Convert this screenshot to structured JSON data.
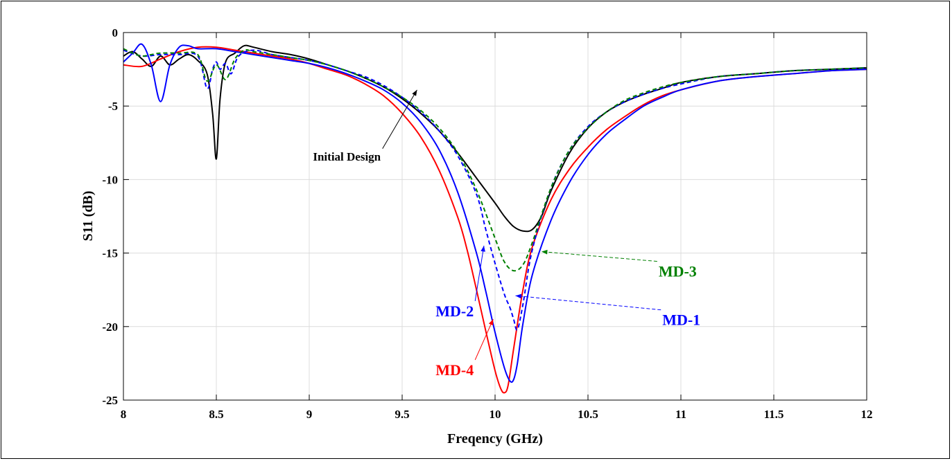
{
  "chart_data": {
    "type": "line",
    "title": "",
    "xlabel": "Freqency (GHz)",
    "ylabel": "S11 (dB)",
    "xlim": [
      8,
      12
    ],
    "ylim": [
      -25,
      0
    ],
    "xticks": [
      "8",
      "8.5",
      "9",
      "9.5",
      "10",
      "10.5",
      "11",
      "11.5",
      "12"
    ],
    "yticks": [
      "0",
      "-5",
      "-10",
      "-15",
      "-20",
      "-25"
    ],
    "grid": true,
    "series": [
      {
        "name": "Initial Design",
        "color": "#000000",
        "dash": "solid",
        "x": [
          8.0,
          8.05,
          8.1,
          8.15,
          8.2,
          8.25,
          8.3,
          8.35,
          8.4,
          8.45,
          8.48,
          8.5,
          8.52,
          8.55,
          8.6,
          8.65,
          8.7,
          8.8,
          8.9,
          9.0,
          9.1,
          9.2,
          9.3,
          9.4,
          9.5,
          9.6,
          9.7,
          9.8,
          9.9,
          10.0,
          10.05,
          10.1,
          10.15,
          10.2,
          10.25,
          10.3,
          10.4,
          10.5,
          10.6,
          10.7,
          10.8,
          10.9,
          11.0,
          11.2,
          11.4,
          11.6,
          11.8,
          12.0
        ],
        "y": [
          -1.6,
          -1.3,
          -1.8,
          -2.3,
          -1.6,
          -2.2,
          -1.8,
          -1.5,
          -1.9,
          -2.8,
          -5.5,
          -8.6,
          -4.5,
          -2.0,
          -1.4,
          -0.9,
          -1.0,
          -1.3,
          -1.5,
          -1.8,
          -2.2,
          -2.6,
          -3.1,
          -3.7,
          -4.5,
          -5.5,
          -6.7,
          -8.2,
          -9.9,
          -11.6,
          -12.5,
          -13.2,
          -13.5,
          -13.4,
          -12.5,
          -10.8,
          -8.2,
          -6.5,
          -5.4,
          -4.7,
          -4.2,
          -3.8,
          -3.4,
          -3.0,
          -2.8,
          -2.6,
          -2.5,
          -2.4
        ]
      },
      {
        "name": "MD-4",
        "color": "#ff0000",
        "dash": "solid",
        "x": [
          8.0,
          8.1,
          8.2,
          8.3,
          8.4,
          8.5,
          8.6,
          8.7,
          8.8,
          8.9,
          9.0,
          9.1,
          9.2,
          9.3,
          9.4,
          9.5,
          9.6,
          9.7,
          9.8,
          9.85,
          9.9,
          9.95,
          10.0,
          10.03,
          10.05,
          10.07,
          10.1,
          10.15,
          10.2,
          10.3,
          10.4,
          10.5,
          10.6,
          10.7,
          10.8,
          10.9,
          11.0,
          11.2,
          11.4,
          11.6,
          11.8,
          12.0
        ],
        "y": [
          -2.2,
          -2.3,
          -1.8,
          -1.3,
          -1.0,
          -1.0,
          -1.2,
          -1.4,
          -1.6,
          -1.8,
          -2.1,
          -2.5,
          -2.9,
          -3.5,
          -4.3,
          -5.5,
          -7.1,
          -9.4,
          -12.6,
          -14.8,
          -17.5,
          -20.3,
          -23.0,
          -24.2,
          -24.5,
          -24.0,
          -21.5,
          -17.5,
          -14.6,
          -11.4,
          -9.3,
          -7.8,
          -6.6,
          -5.7,
          -4.9,
          -4.3,
          -3.9,
          -3.3,
          -3.0,
          -2.8,
          -2.6,
          -2.5
        ]
      },
      {
        "name": "MD-2",
        "color": "#0000ff",
        "dash": "solid",
        "x": [
          8.0,
          8.05,
          8.1,
          8.15,
          8.2,
          8.25,
          8.3,
          8.35,
          8.4,
          8.5,
          8.6,
          8.7,
          8.8,
          8.9,
          9.0,
          9.1,
          9.2,
          9.3,
          9.4,
          9.5,
          9.6,
          9.7,
          9.8,
          9.9,
          9.95,
          10.0,
          10.05,
          10.08,
          10.1,
          10.12,
          10.15,
          10.2,
          10.3,
          10.4,
          10.5,
          10.6,
          10.7,
          10.8,
          10.9,
          11.0,
          11.2,
          11.4,
          11.6,
          11.8,
          12.0
        ],
        "y": [
          -2.0,
          -1.4,
          -0.8,
          -2.2,
          -4.7,
          -2.2,
          -1.0,
          -0.9,
          -1.1,
          -1.1,
          -1.3,
          -1.5,
          -1.7,
          -1.9,
          -2.1,
          -2.4,
          -2.8,
          -3.3,
          -3.9,
          -4.8,
          -6.1,
          -8.0,
          -10.9,
          -15.0,
          -17.6,
          -20.4,
          -22.8,
          -23.7,
          -23.6,
          -22.5,
          -19.8,
          -16.5,
          -12.8,
          -10.2,
          -8.3,
          -6.9,
          -5.9,
          -5.0,
          -4.4,
          -3.9,
          -3.3,
          -3.0,
          -2.8,
          -2.6,
          -2.5
        ]
      },
      {
        "name": "MD-1",
        "color": "#0000ff",
        "dash": "dashed",
        "x": [
          8.0,
          8.1,
          8.2,
          8.3,
          8.4,
          8.45,
          8.48,
          8.5,
          8.52,
          8.55,
          8.58,
          8.62,
          8.7,
          8.8,
          8.9,
          9.0,
          9.1,
          9.2,
          9.3,
          9.4,
          9.5,
          9.6,
          9.7,
          9.8,
          9.9,
          9.95,
          10.0,
          10.05,
          10.08,
          10.1,
          10.12,
          10.15,
          10.2,
          10.3,
          10.4,
          10.5,
          10.6,
          10.7,
          10.8,
          10.9,
          11.0,
          11.2,
          11.4,
          11.6,
          11.8,
          12.0
        ],
        "y": [
          -1.2,
          -1.6,
          -1.5,
          -1.5,
          -1.6,
          -3.8,
          -2.5,
          -2.0,
          -2.5,
          -2.1,
          -2.8,
          -1.6,
          -1.2,
          -1.5,
          -1.7,
          -1.9,
          -2.2,
          -2.6,
          -3.0,
          -3.6,
          -4.4,
          -5.4,
          -6.7,
          -8.4,
          -11.0,
          -13.4,
          -15.7,
          -17.8,
          -18.7,
          -19.5,
          -20.2,
          -18.5,
          -14.8,
          -10.6,
          -8.0,
          -6.4,
          -5.4,
          -4.7,
          -4.2,
          -3.8,
          -3.5,
          -3.0,
          -2.8,
          -2.6,
          -2.5,
          -2.4
        ]
      },
      {
        "name": "MD-3",
        "color": "#008000",
        "dash": "dashed",
        "x": [
          8.0,
          8.05,
          8.1,
          8.15,
          8.2,
          8.3,
          8.4,
          8.45,
          8.5,
          8.55,
          8.6,
          8.65,
          8.7,
          8.8,
          8.9,
          9.0,
          9.1,
          9.2,
          9.3,
          9.4,
          9.5,
          9.6,
          9.7,
          9.8,
          9.9,
          10.0,
          10.05,
          10.1,
          10.15,
          10.2,
          10.3,
          10.4,
          10.5,
          10.6,
          10.7,
          10.8,
          10.9,
          11.0,
          11.2,
          11.4,
          11.6,
          11.8,
          12.0
        ],
        "y": [
          -1.1,
          -1.4,
          -1.6,
          -1.5,
          -1.4,
          -1.4,
          -1.5,
          -3.3,
          -2.2,
          -3.2,
          -1.8,
          -1.2,
          -1.3,
          -1.5,
          -1.7,
          -1.9,
          -2.2,
          -2.6,
          -3.1,
          -3.7,
          -4.4,
          -5.3,
          -6.5,
          -8.2,
          -10.7,
          -14.0,
          -15.6,
          -16.2,
          -15.8,
          -14.3,
          -10.6,
          -8.0,
          -6.5,
          -5.4,
          -4.6,
          -4.1,
          -3.7,
          -3.4,
          -3.0,
          -2.8,
          -2.6,
          -2.5,
          -2.4
        ]
      }
    ],
    "annotations": [
      {
        "text": "Initial Design",
        "color": "#000000",
        "tx": 9.02,
        "ty": -8.7,
        "px": 9.58,
        "py": -3.9,
        "size": 17
      },
      {
        "text": "MD-3",
        "color": "#008000",
        "tx": 10.88,
        "ty": -16.6,
        "px": 10.25,
        "py": -14.9,
        "size": 22
      },
      {
        "text": "MD-2",
        "color": "#0000ff",
        "tx": 9.68,
        "ty": -19.3,
        "px": 9.94,
        "py": -14.5,
        "size": 22
      },
      {
        "text": "MD-1",
        "color": "#0000ff",
        "tx": 10.9,
        "ty": -19.9,
        "px": 10.11,
        "py": -17.9,
        "size": 22
      },
      {
        "text": "MD-4",
        "color": "#ff0000",
        "tx": 9.68,
        "ty": -23.3,
        "px": 9.99,
        "py": -19.5,
        "size": 22
      }
    ]
  }
}
